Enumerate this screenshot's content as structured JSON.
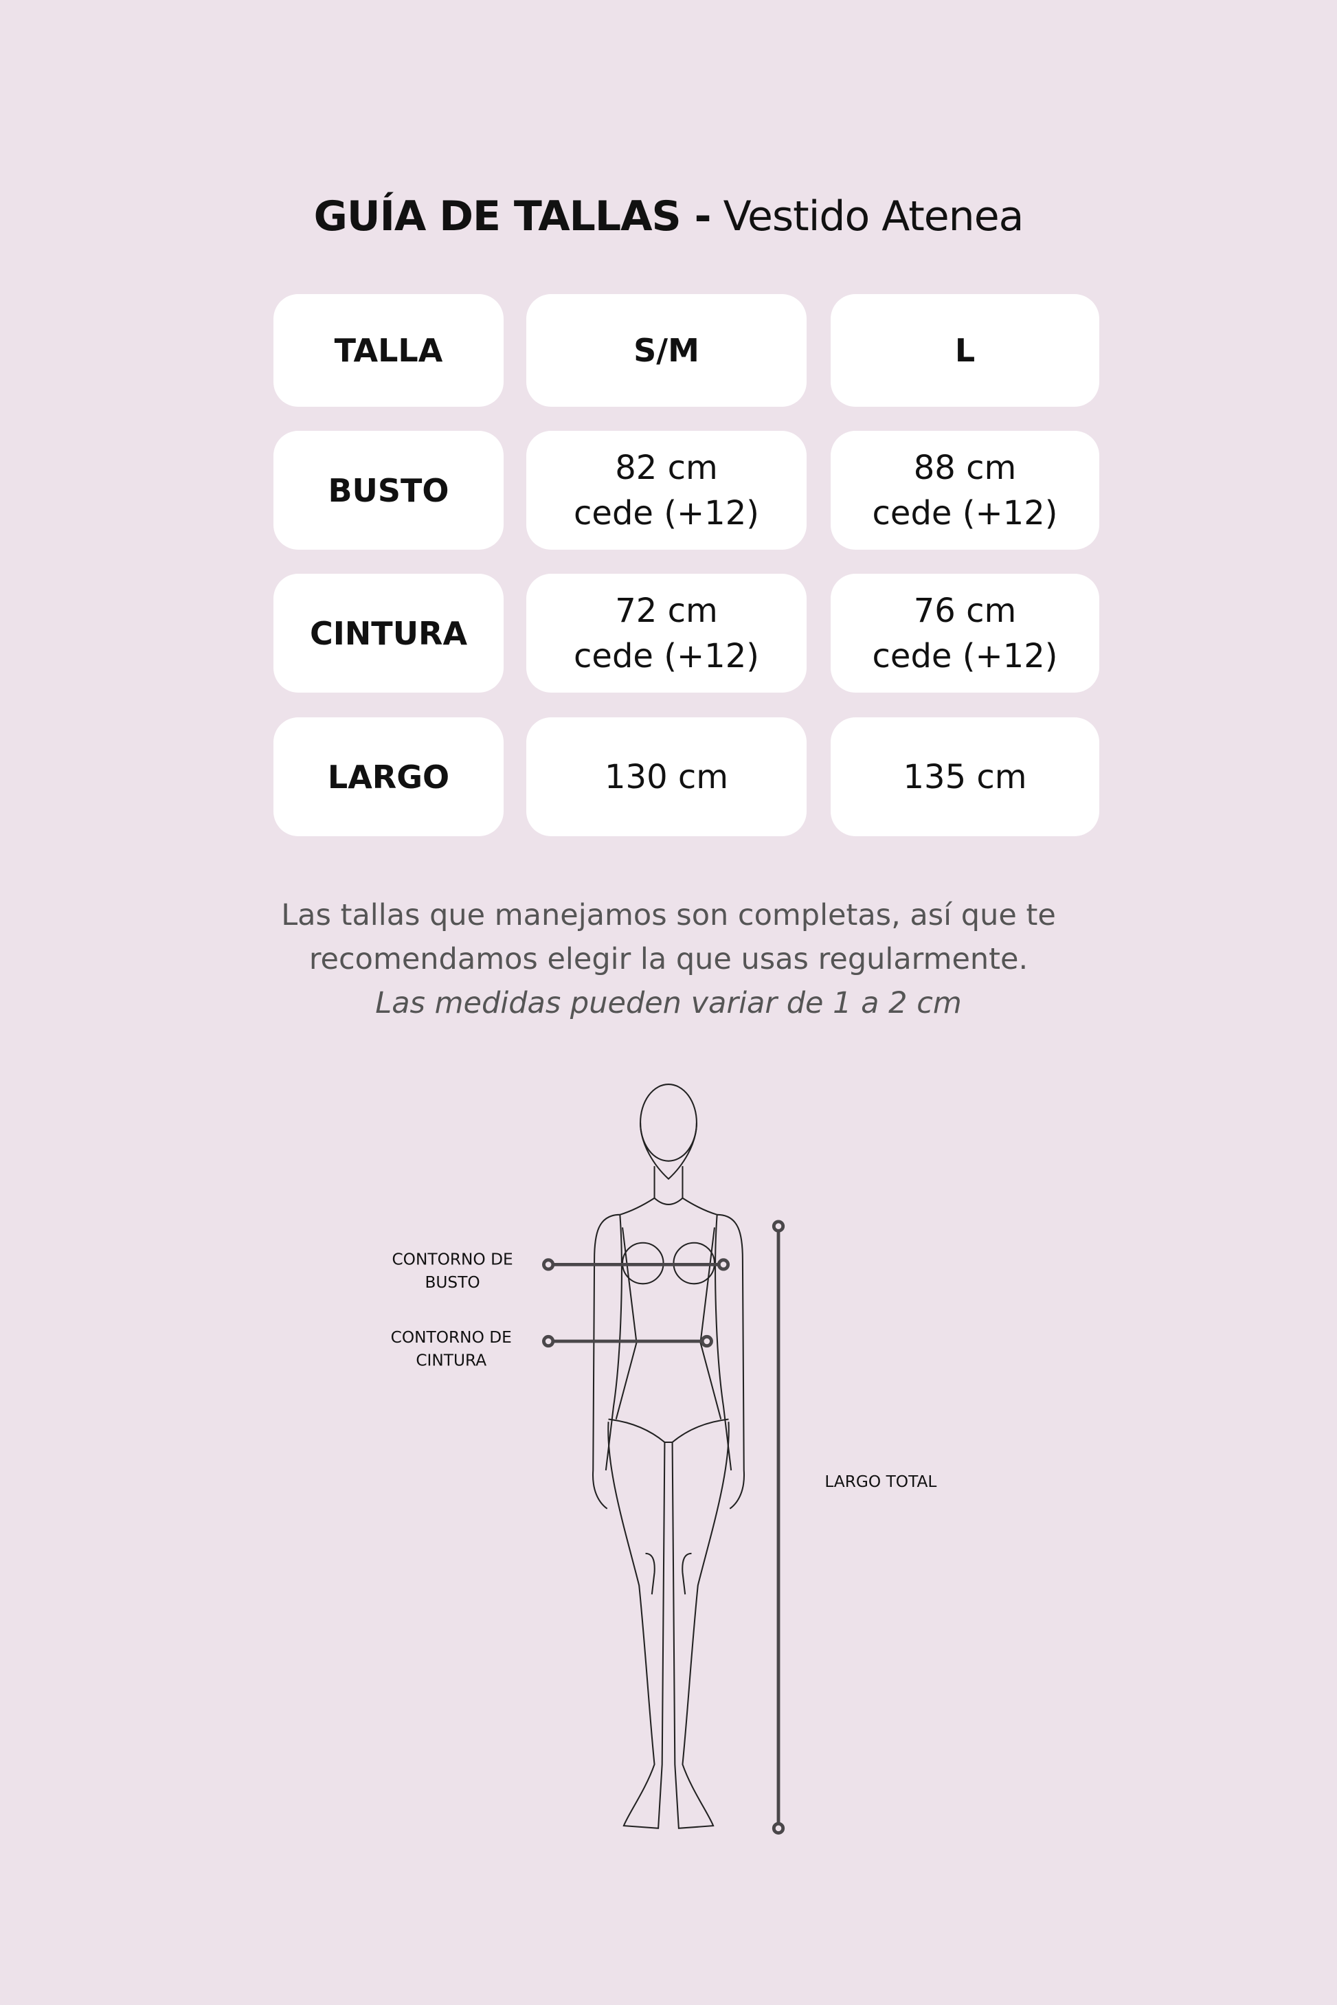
{
  "header": {
    "title_bold": "GUÍA DE TALLAS -",
    "title_product": "Vestido Atenea"
  },
  "table": {
    "columns": [
      "TALLA",
      "S/M",
      "L"
    ],
    "rows": [
      {
        "label": "BUSTO",
        "values": [
          [
            "82 cm",
            "cede (+12)"
          ],
          [
            "88 cm",
            "cede (+12)"
          ]
        ]
      },
      {
        "label": "CINTURA",
        "values": [
          [
            "72 cm",
            "cede (+12)"
          ],
          [
            "76 cm",
            "cede (+12)"
          ]
        ]
      },
      {
        "label": "LARGO",
        "values": [
          [
            "130 cm"
          ],
          [
            "135 cm"
          ]
        ]
      }
    ]
  },
  "note": {
    "line1": "Las tallas que manejamos son completas, así que te",
    "line2": "recomendamos elegir la que usas regularmente.",
    "line3": "Las medidas pueden variar de 1 a 2 cm"
  },
  "diagram": {
    "bust_label": [
      "CONTORNO DE",
      "BUSTO"
    ],
    "waist_label": [
      "CONTORNO DE",
      "CINTURA"
    ],
    "length_label": "LARGO TOTAL"
  },
  "colors": {
    "background": "#ede2ea",
    "card": "#ffffff",
    "measure_line": "#4a474a"
  }
}
